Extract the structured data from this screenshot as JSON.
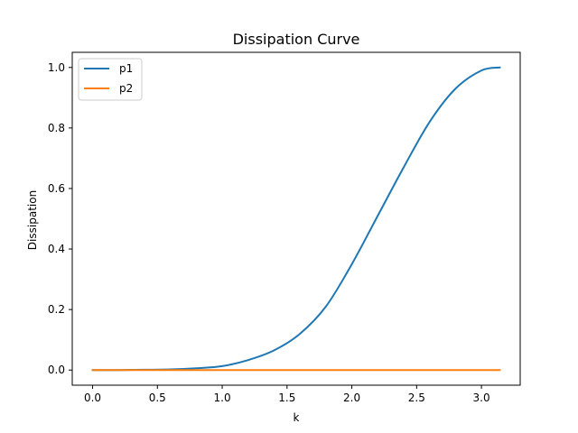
{
  "chart_data": {
    "type": "line",
    "title": "Dissipation Curve",
    "xlabel": "k",
    "ylabel": "Dissipation",
    "xlim": [
      -0.157,
      3.299
    ],
    "ylim": [
      -0.05,
      1.05
    ],
    "xticks": [
      0.0,
      0.5,
      1.0,
      1.5,
      2.0,
      2.5,
      3.0
    ],
    "xtick_labels": [
      "0.0",
      "0.5",
      "1.0",
      "1.5",
      "2.0",
      "2.5",
      "3.0"
    ],
    "yticks": [
      0.0,
      0.2,
      0.4,
      0.6,
      0.8,
      1.0
    ],
    "ytick_labels": [
      "0.0",
      "0.2",
      "0.4",
      "0.6",
      "0.8",
      "1.0"
    ],
    "grid": false,
    "legend_position": "top-left",
    "series": [
      {
        "name": "p1",
        "color": "#1f77b4",
        "x": [
          0.0,
          0.2,
          0.4,
          0.6,
          0.8,
          1.0,
          1.2,
          1.4,
          1.6,
          1.8,
          2.0,
          2.2,
          2.4,
          2.6,
          2.8,
          3.0,
          3.1416
        ],
        "y": [
          0.0,
          0.0,
          0.001,
          0.002,
          0.006,
          0.013,
          0.033,
          0.065,
          0.12,
          0.21,
          0.35,
          0.51,
          0.67,
          0.82,
          0.93,
          0.99,
          1.0
        ]
      },
      {
        "name": "p2",
        "color": "#ff7f0e",
        "x": [
          0.0,
          0.5,
          1.0,
          1.5,
          2.0,
          2.5,
          3.0,
          3.1416
        ],
        "y": [
          0.0,
          0.0,
          0.0,
          0.0,
          0.0,
          0.0,
          0.0,
          0.0
        ]
      }
    ]
  }
}
